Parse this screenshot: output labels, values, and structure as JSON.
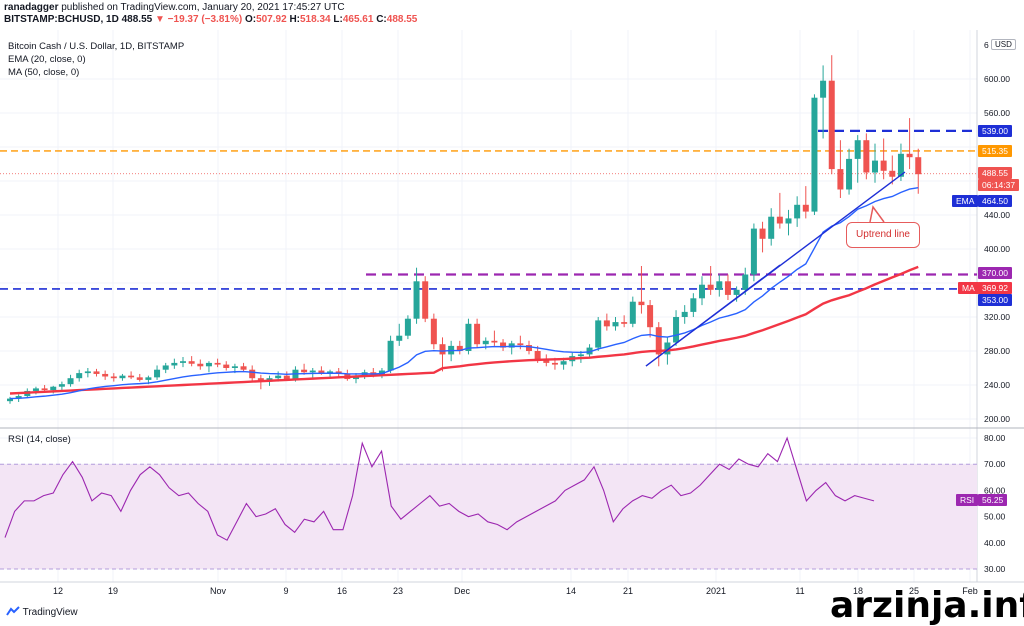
{
  "header": {
    "publisher": "ranadagger",
    "published_text": " published on TradingView.com, January 20, 2021 17:45:27 UTC",
    "symbol": "BITSTAMP:BCHUSD, 1D",
    "last": "488.55",
    "change": "−19.37 (−3.81%)",
    "o_label": "O:",
    "o": "507.92",
    "h_label": "H:",
    "h": "518.34",
    "l_label": "L:",
    "l": "465.61",
    "c_label": "C:",
    "c": "488.55"
  },
  "legend": {
    "title": "Bitcoin Cash / U.S. Dollar, 1D, BITSTAMP",
    "ema": "EMA (20, close, 0)",
    "ma": "MA (50, close, 0)",
    "rsi": "RSI (14, close)"
  },
  "axis": {
    "currency": "USD",
    "price_ticks": [
      "600.00",
      "560.00",
      "480.00",
      "440.00",
      "400.00",
      "320.00",
      "280.00",
      "240.00",
      "200.00"
    ],
    "rsi_ticks": [
      "80.00",
      "70.00",
      "60.00",
      "50.00",
      "40.00",
      "30.00"
    ],
    "x_ticks": [
      "12",
      "19",
      "Nov",
      "9",
      "16",
      "23",
      "Dec",
      "14",
      "21",
      "2021",
      "11",
      "18",
      "25",
      "Feb"
    ]
  },
  "tags": {
    "level_539": "539.00",
    "level_515": "515.35",
    "price_last": "488.55",
    "countdown": "06:14:37",
    "ema_label": "EMA",
    "ema_value": "464.50",
    "level_370": "370.00",
    "ma_label": "MA",
    "ma_value": "369.92",
    "level_353": "353.00",
    "rsi_label": "RSI",
    "rsi_value": "56.25",
    "top_partial": "6"
  },
  "annotation": {
    "uptrend": "Uptrend line"
  },
  "footer": {
    "brand": "TradingView",
    "watermark": "arzinja.info"
  },
  "colors": {
    "up": "#26a69a",
    "down": "#ef5350",
    "ema": "#2962ff",
    "ma": "#f23645",
    "level_539": "#1e2fd6",
    "level_515": "#ff9800",
    "level_370": "#9c27b0",
    "level_353": "#1e2fd6",
    "rsi_line": "#9c27b0",
    "rsi_band": "#f3e5f5"
  },
  "chart_data": {
    "type": "candlestick",
    "title": "Bitcoin Cash / U.S. Dollar, 1D, BITSTAMP",
    "ylim": [
      180,
      640
    ],
    "levels": [
      539,
      515.35,
      370,
      353
    ],
    "candles": [
      [
        221,
        226,
        218,
        224
      ],
      [
        224,
        229,
        220,
        227
      ],
      [
        227,
        236,
        225,
        233
      ],
      [
        233,
        238,
        229,
        236
      ],
      [
        236,
        240,
        231,
        234
      ],
      [
        234,
        239,
        230,
        238
      ],
      [
        238,
        244,
        234,
        241
      ],
      [
        241,
        252,
        238,
        248
      ],
      [
        248,
        258,
        244,
        254
      ],
      [
        254,
        260,
        249,
        256
      ],
      [
        256,
        259,
        250,
        253
      ],
      [
        253,
        257,
        246,
        250
      ],
      [
        250,
        254,
        244,
        248
      ],
      [
        248,
        253,
        245,
        251
      ],
      [
        251,
        256,
        247,
        249
      ],
      [
        249,
        253,
        244,
        246
      ],
      [
        246,
        251,
        241,
        249
      ],
      [
        249,
        263,
        246,
        258
      ],
      [
        258,
        266,
        254,
        263
      ],
      [
        263,
        271,
        259,
        266
      ],
      [
        266,
        273,
        261,
        268
      ],
      [
        268,
        274,
        262,
        265
      ],
      [
        265,
        270,
        258,
        262
      ],
      [
        262,
        268,
        255,
        266
      ],
      [
        266,
        271,
        261,
        264
      ],
      [
        264,
        268,
        257,
        260
      ],
      [
        260,
        265,
        254,
        262
      ],
      [
        262,
        266,
        256,
        258
      ],
      [
        258,
        263,
        245,
        248
      ],
      [
        248,
        252,
        235,
        244
      ],
      [
        244,
        251,
        239,
        248
      ],
      [
        248,
        256,
        244,
        251
      ],
      [
        251,
        256,
        245,
        247
      ],
      [
        247,
        262,
        244,
        258
      ],
      [
        258,
        265,
        252,
        255
      ],
      [
        255,
        260,
        248,
        257
      ],
      [
        257,
        262,
        252,
        254
      ],
      [
        254,
        258,
        248,
        256
      ],
      [
        256,
        260,
        250,
        253
      ],
      [
        253,
        258,
        245,
        247
      ],
      [
        247,
        254,
        242,
        251
      ],
      [
        251,
        258,
        247,
        255
      ],
      [
        255,
        260,
        249,
        252
      ],
      [
        252,
        260,
        248,
        257
      ],
      [
        257,
        298,
        254,
        292
      ],
      [
        292,
        312,
        286,
        298
      ],
      [
        298,
        322,
        294,
        318
      ],
      [
        318,
        378,
        312,
        362
      ],
      [
        362,
        368,
        314,
        318
      ],
      [
        318,
        324,
        282,
        288
      ],
      [
        288,
        296,
        256,
        276
      ],
      [
        276,
        292,
        268,
        286
      ],
      [
        286,
        292,
        276,
        280
      ],
      [
        280,
        318,
        276,
        312
      ],
      [
        312,
        318,
        284,
        288
      ],
      [
        288,
        296,
        282,
        292
      ],
      [
        292,
        304,
        286,
        290
      ],
      [
        290,
        294,
        280,
        284
      ],
      [
        284,
        292,
        276,
        289
      ],
      [
        289,
        298,
        282,
        287
      ],
      [
        287,
        292,
        276,
        280
      ],
      [
        280,
        286,
        266,
        270
      ],
      [
        270,
        276,
        262,
        266
      ],
      [
        266,
        272,
        258,
        264
      ],
      [
        264,
        272,
        258,
        268
      ],
      [
        268,
        278,
        262,
        274
      ],
      [
        274,
        280,
        266,
        276
      ],
      [
        276,
        288,
        272,
        284
      ],
      [
        284,
        320,
        280,
        316
      ],
      [
        316,
        324,
        304,
        309
      ],
      [
        309,
        320,
        304,
        314
      ],
      [
        314,
        322,
        308,
        312
      ],
      [
        312,
        344,
        308,
        338
      ],
      [
        338,
        380,
        324,
        334
      ],
      [
        334,
        340,
        296,
        308
      ],
      [
        308,
        314,
        262,
        276
      ],
      [
        276,
        296,
        264,
        290
      ],
      [
        290,
        328,
        286,
        320
      ],
      [
        320,
        334,
        312,
        326
      ],
      [
        326,
        348,
        320,
        342
      ],
      [
        342,
        368,
        334,
        358
      ],
      [
        358,
        380,
        346,
        352
      ],
      [
        352,
        370,
        344,
        362
      ],
      [
        362,
        370,
        340,
        346
      ],
      [
        346,
        356,
        338,
        352
      ],
      [
        352,
        378,
        346,
        370
      ],
      [
        370,
        430,
        362,
        424
      ],
      [
        424,
        432,
        396,
        412
      ],
      [
        412,
        448,
        404,
        438
      ],
      [
        438,
        466,
        424,
        430
      ],
      [
        430,
        446,
        416,
        436
      ],
      [
        436,
        462,
        426,
        452
      ],
      [
        452,
        474,
        436,
        444
      ],
      [
        444,
        582,
        440,
        578
      ],
      [
        578,
        616,
        530,
        598
      ],
      [
        598,
        628,
        488,
        494
      ],
      [
        494,
        528,
        460,
        470
      ],
      [
        470,
        518,
        464,
        506
      ],
      [
        506,
        534,
        478,
        528
      ],
      [
        528,
        536,
        482,
        490
      ],
      [
        490,
        524,
        478,
        504
      ],
      [
        504,
        530,
        482,
        492
      ],
      [
        492,
        510,
        476,
        485
      ],
      [
        485,
        524,
        480,
        512
      ],
      [
        512,
        554,
        494,
        508
      ],
      [
        508,
        518,
        465,
        488
      ]
    ],
    "rsi": [
      42,
      52,
      56,
      56,
      58,
      59,
      66,
      71,
      65,
      56,
      59,
      58,
      52,
      60,
      66,
      69,
      66,
      61,
      58,
      59,
      55,
      52,
      43,
      41,
      48,
      55,
      50,
      51,
      53,
      47,
      44,
      49,
      48,
      52,
      45,
      45,
      58,
      78,
      69,
      75,
      54,
      49,
      52,
      55,
      58,
      54,
      55,
      52,
      50,
      51,
      48,
      47,
      45,
      48,
      50,
      52,
      54,
      56,
      60,
      62,
      64,
      69,
      60,
      48,
      53,
      56,
      58,
      57,
      60,
      62,
      58,
      59,
      62,
      66,
      70,
      68,
      72,
      70,
      69,
      74,
      71,
      80,
      68,
      56,
      60,
      63,
      58,
      56,
      58,
      57,
      56
    ]
  }
}
